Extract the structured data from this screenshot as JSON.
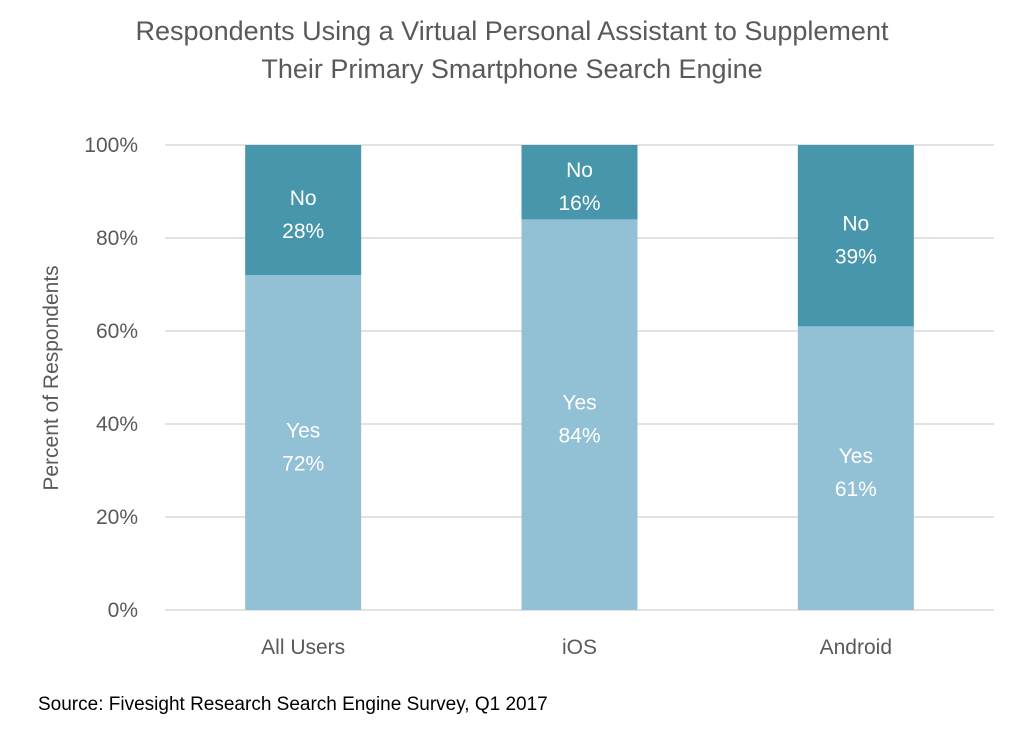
{
  "chart_data": {
    "type": "bar",
    "stacked": true,
    "title": "Respondents Using a Virtual Personal Assistant to Supplement Their Primary Smartphone Search Engine",
    "title_lines": [
      "Respondents Using a Virtual Personal Assistant to Supplement",
      "Their Primary Smartphone Search Engine"
    ],
    "xlabel": "",
    "ylabel": "Percent of Respondents",
    "ylim": [
      0,
      100
    ],
    "yticks": [
      "0%",
      "20%",
      "40%",
      "60%",
      "80%",
      "100%"
    ],
    "ytick_values": [
      0,
      20,
      40,
      60,
      80,
      100
    ],
    "categories": [
      "All Users",
      "iOS",
      "Android"
    ],
    "series": [
      {
        "name": "Yes",
        "values": [
          72,
          84,
          61
        ],
        "labels": [
          "72%",
          "84%",
          "61%"
        ],
        "color": "#92c1d6"
      },
      {
        "name": "No",
        "values": [
          28,
          16,
          39
        ],
        "labels": [
          "28%",
          "16%",
          "39%"
        ],
        "color": "#4796ab"
      }
    ],
    "grid": true,
    "legend": "none"
  },
  "source": "Source: Fivesight Research Search Engine Survey, Q1 2017"
}
